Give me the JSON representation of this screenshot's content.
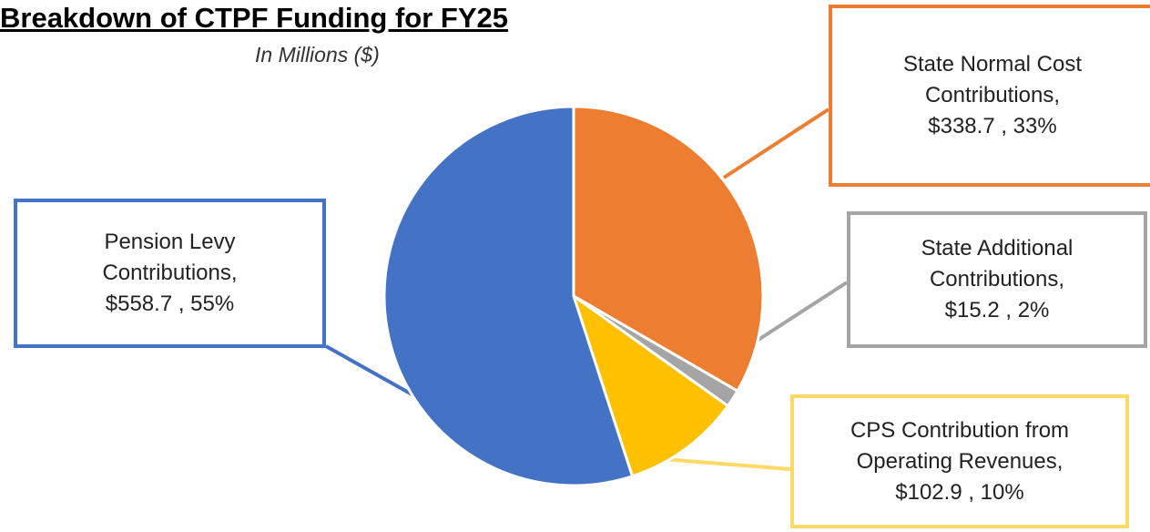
{
  "chart_data": {
    "type": "pie",
    "title": "Breakdown of CTPF Funding for FY25",
    "subtitle": "In Millions ($)",
    "categories": [
      "State Normal  Cost Contributions,",
      "State Additional Contributions,",
      "CPS Contribution from Operating Revenues,",
      "Pension Levy Contributions,"
    ],
    "values": [
      338.7,
      15.2,
      102.9,
      558.7
    ],
    "value_labels": [
      "$338.7 , 33%",
      "$15.2 , 2%",
      "$102.9 , 10%",
      "$558.7 , 55%"
    ],
    "colors": [
      "#ed7d31",
      "#a5a5a5",
      "#ffc000",
      "#4472c4"
    ]
  }
}
